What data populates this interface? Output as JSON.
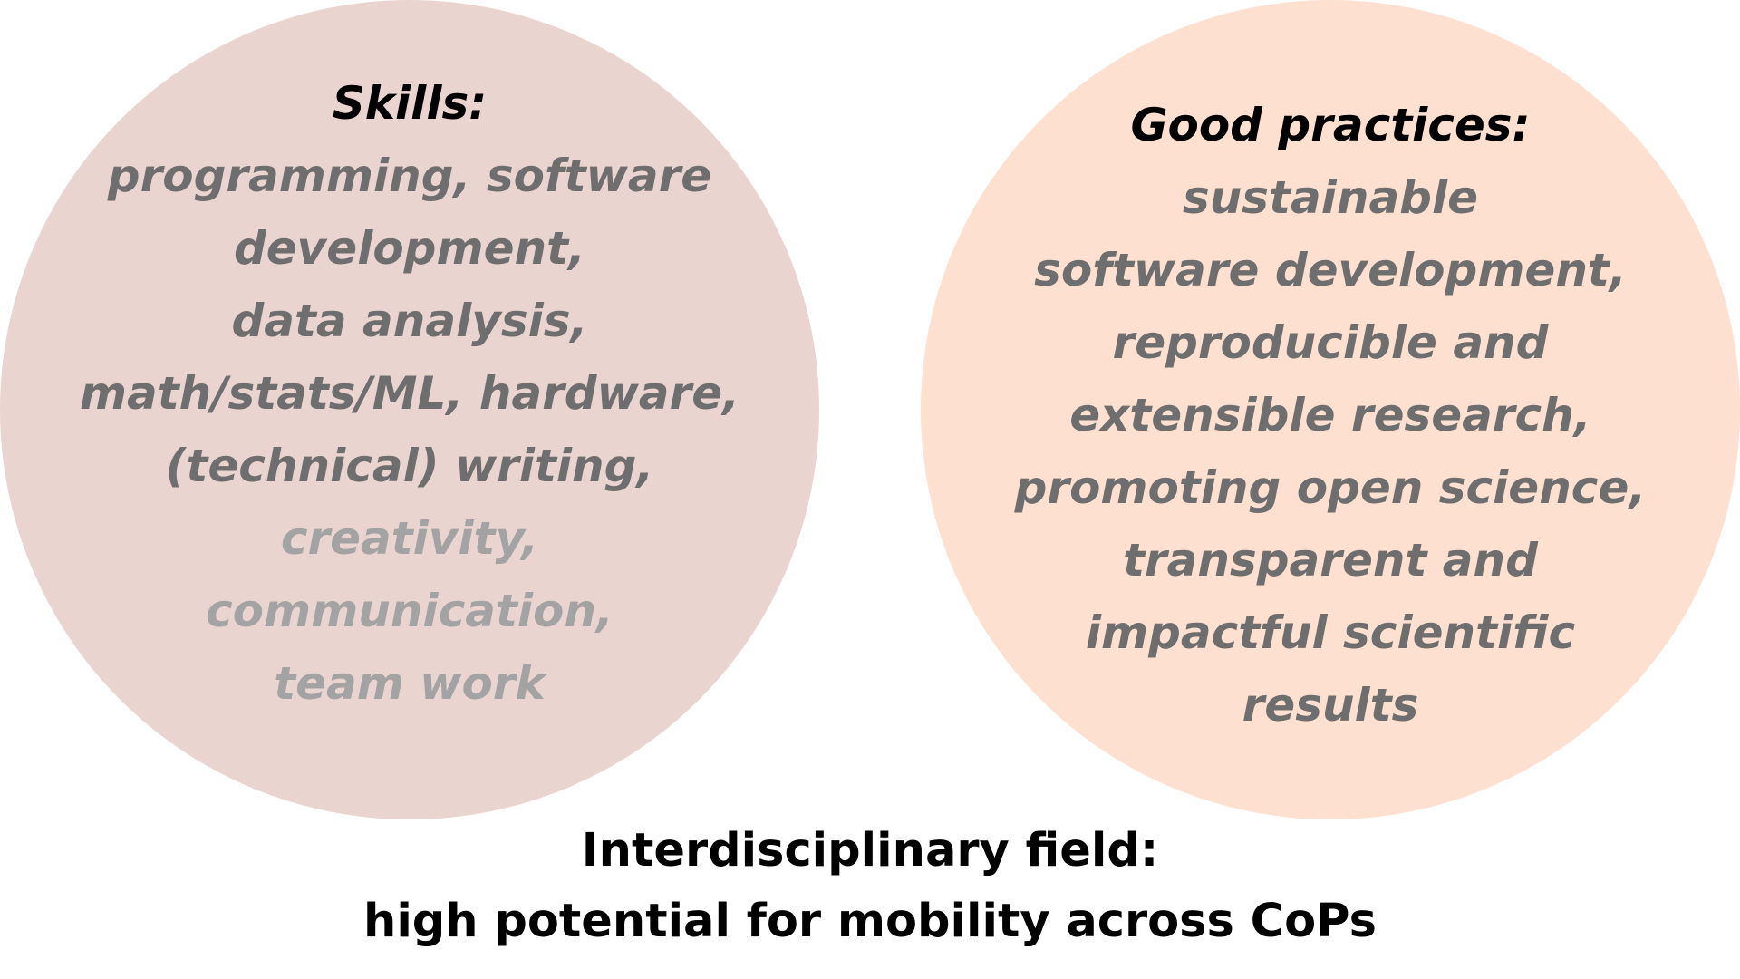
{
  "colors": {
    "left_circle": "#ead4cf",
    "right_circle": "#fde0d0",
    "primary_text": "#000000",
    "dark_gray": "#6e6e6e",
    "light_gray": "#a3a3a3"
  },
  "skills": {
    "heading": "Skills:",
    "lines": [
      {
        "text": "programming, software",
        "tone": "dark"
      },
      {
        "text": "development,",
        "tone": "dark"
      },
      {
        "text": "data analysis,",
        "tone": "dark"
      },
      {
        "text": "math/stats/ML, hardware,",
        "tone": "dark"
      },
      {
        "text": "(technical) writing,",
        "tone": "dark"
      },
      {
        "text": "creativity,",
        "tone": "light"
      },
      {
        "text": "communication,",
        "tone": "light"
      },
      {
        "text": "team work",
        "tone": "light"
      }
    ]
  },
  "practices": {
    "heading": "Good practices:",
    "lines": [
      {
        "text": "sustainable",
        "tone": "dark"
      },
      {
        "text": "software development,",
        "tone": "dark"
      },
      {
        "text": "reproducible and",
        "tone": "dark"
      },
      {
        "text": "extensible research,",
        "tone": "dark"
      },
      {
        "text": "promoting open science,",
        "tone": "dark"
      },
      {
        "text": "transparent and",
        "tone": "dark"
      },
      {
        "text": "impactful scientific",
        "tone": "dark"
      },
      {
        "text": "results",
        "tone": "dark"
      }
    ]
  },
  "footer": {
    "line1": "Interdisciplinary field:",
    "line2": "high potential for mobility across CoPs"
  }
}
